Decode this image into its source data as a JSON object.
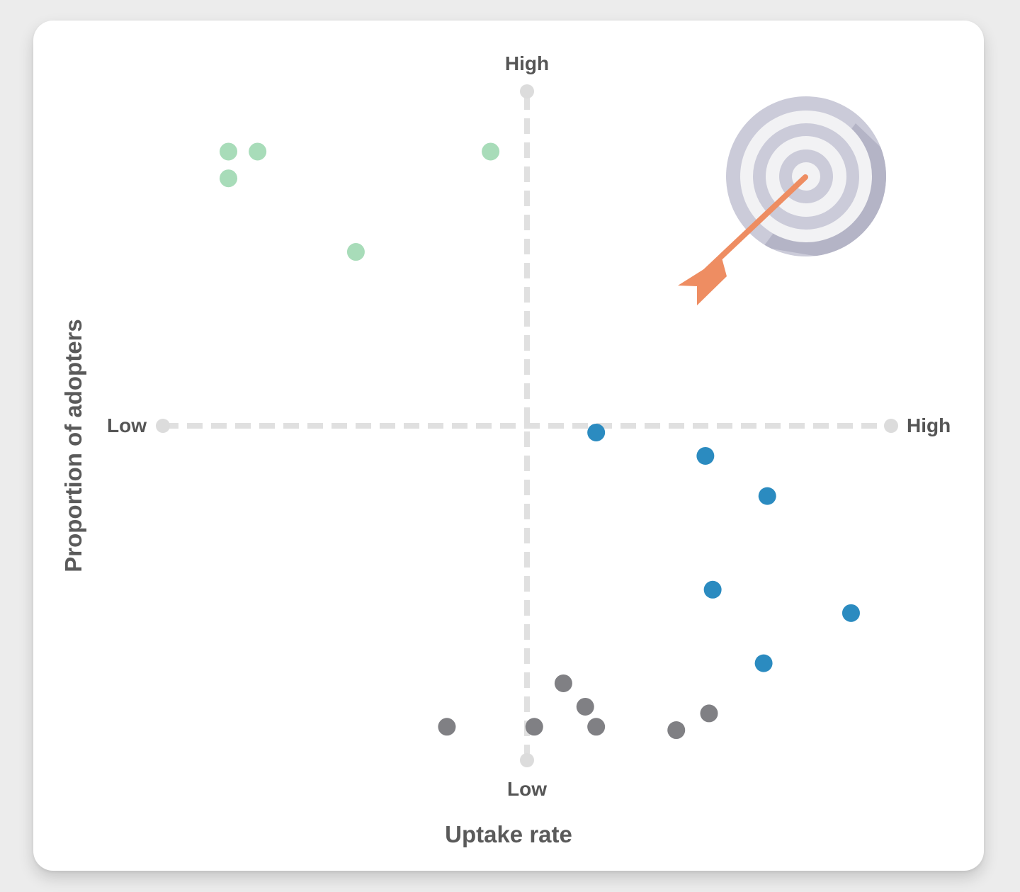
{
  "chart_data": {
    "type": "scatter",
    "title": "",
    "xlabel": "Uptake rate",
    "ylabel": "Proportion of adopters",
    "x_ticks": {
      "low": "Low",
      "high": "High"
    },
    "y_ticks": {
      "low": "Low",
      "high": "High"
    },
    "xlim": [
      -1,
      1
    ],
    "ylim": [
      -1,
      1
    ],
    "grid": false,
    "series": [
      {
        "color": "#a8dcb9",
        "points": [
          {
            "x": -0.82,
            "y": 0.82
          },
          {
            "x": -0.74,
            "y": 0.82
          },
          {
            "x": -0.82,
            "y": 0.74
          },
          {
            "x": -0.47,
            "y": 0.52
          },
          {
            "x": -0.1,
            "y": 0.82
          }
        ]
      },
      {
        "color": "#2b8bc0",
        "points": [
          {
            "x": 0.19,
            "y": -0.02
          },
          {
            "x": 0.49,
            "y": -0.09
          },
          {
            "x": 0.66,
            "y": -0.21
          },
          {
            "x": 0.51,
            "y": -0.49
          },
          {
            "x": 0.89,
            "y": -0.56
          },
          {
            "x": 0.65,
            "y": -0.71
          }
        ]
      },
      {
        "color": "#808084",
        "points": [
          {
            "x": -0.22,
            "y": -0.9
          },
          {
            "x": 0.02,
            "y": -0.9
          },
          {
            "x": 0.1,
            "y": -0.77
          },
          {
            "x": 0.16,
            "y": -0.84
          },
          {
            "x": 0.19,
            "y": -0.9
          },
          {
            "x": 0.41,
            "y": -0.91
          },
          {
            "x": 0.5,
            "y": -0.86
          }
        ]
      }
    ]
  },
  "icons": {
    "target": "target-with-arrow-icon"
  },
  "colors": {
    "axis": "#e0e0e0",
    "target_ring_dark": "#cbcbd9",
    "target_ring_light": "#f2f2f4",
    "arrow": "#ee8d62"
  }
}
